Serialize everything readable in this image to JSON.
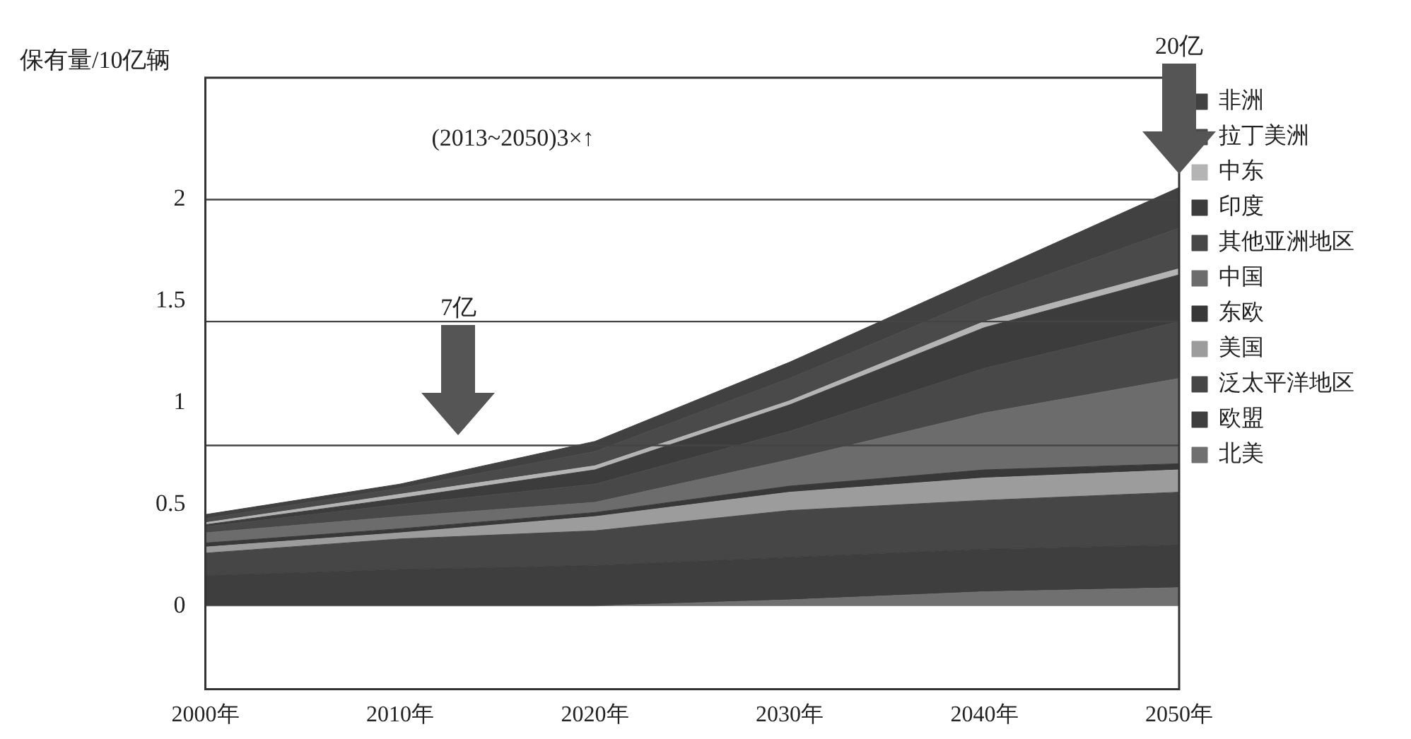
{
  "chart_data": {
    "type": "area",
    "stacked": true,
    "ylabel": "保有量/10亿辆",
    "x": [
      2000,
      2010,
      2020,
      2030,
      2040,
      2050
    ],
    "xlim": [
      2000,
      2050
    ],
    "xticks": [
      {
        "value": 2000,
        "label": "2000年"
      },
      {
        "value": 2010,
        "label": "2010年"
      },
      {
        "value": 2020,
        "label": "2020年"
      },
      {
        "value": 2030,
        "label": "2030年"
      },
      {
        "value": 2040,
        "label": "2040年"
      },
      {
        "value": 2050,
        "label": "2050年"
      }
    ],
    "ylim": [
      -0.41,
      2.6
    ],
    "yticks": [
      0,
      0.5,
      1,
      1.5,
      2
    ],
    "grid": false,
    "legend": "right",
    "series": [
      {
        "name": "北美",
        "color": "#707070",
        "values": [
          0,
          0,
          0,
          0.03,
          0.07,
          0.09
        ]
      },
      {
        "name": "欧盟",
        "color": "#3e3e3e",
        "values": [
          0.15,
          0.18,
          0.2,
          0.21,
          0.21,
          0.21
        ]
      },
      {
        "name": "泛太平洋地区",
        "color": "#464646",
        "values": [
          0.11,
          0.15,
          0.17,
          0.23,
          0.24,
          0.26
        ]
      },
      {
        "name": "美国",
        "color": "#9c9c9c",
        "values": [
          0.03,
          0.03,
          0.07,
          0.09,
          0.11,
          0.11
        ]
      },
      {
        "name": "东欧",
        "color": "#383838",
        "values": [
          0.02,
          0.02,
          0.02,
          0.03,
          0.04,
          0.03
        ]
      },
      {
        "name": "中国",
        "color": "#6c6c6c",
        "values": [
          0.05,
          0.06,
          0.05,
          0.13,
          0.28,
          0.42
        ]
      },
      {
        "name": "其他亚洲地区",
        "color": "#484848",
        "values": [
          0.03,
          0.06,
          0.09,
          0.14,
          0.22,
          0.28
        ]
      },
      {
        "name": "印度",
        "color": "#3c3c3c",
        "values": [
          0.01,
          0.03,
          0.07,
          0.13,
          0.2,
          0.23
        ]
      },
      {
        "name": "中东",
        "color": "#b4b4b4",
        "values": [
          0.01,
          0.02,
          0.02,
          0.02,
          0.03,
          0.03
        ]
      },
      {
        "name": "拉丁美洲",
        "color": "#4a4a4a",
        "values": [
          0.02,
          0.03,
          0.07,
          0.11,
          0.12,
          0.2
        ]
      },
      {
        "name": "非洲",
        "color": "#414141",
        "values": [
          0.02,
          0.02,
          0.05,
          0.08,
          0.11,
          0.2
        ]
      }
    ],
    "ref_lines": [
      {
        "axis": "y",
        "value": 2.0,
        "color": "#444444"
      },
      {
        "axis": "y",
        "value": 1.4,
        "color": "#444444"
      },
      {
        "axis": "y",
        "value": 0.79,
        "color": "#444444"
      }
    ],
    "annotations": [
      "(2013~2050)3×↑",
      "7亿",
      "20亿"
    ]
  }
}
